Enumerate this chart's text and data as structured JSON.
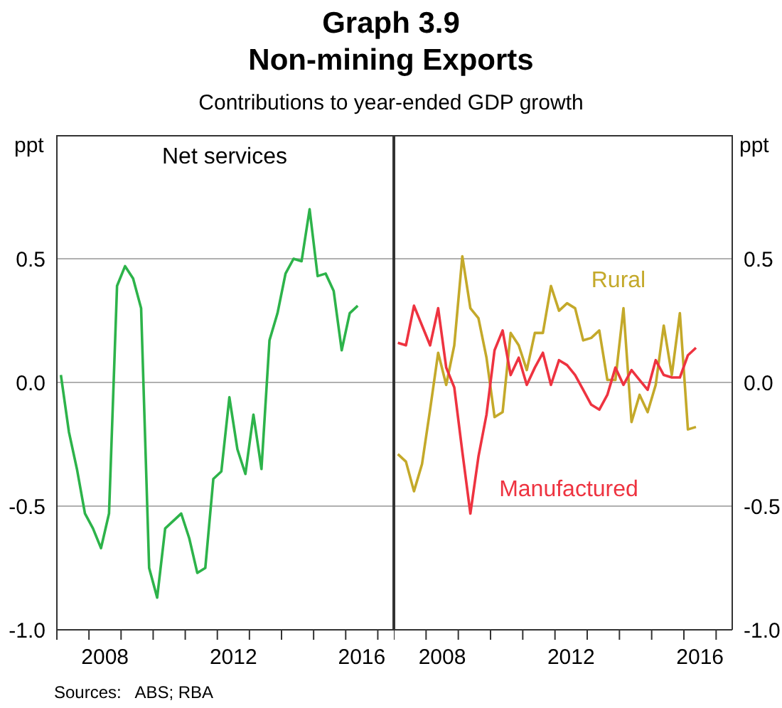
{
  "chart_data": [
    {
      "type": "line",
      "title": "Graph 3.9\nNon-mining Exports",
      "subtitle": "Contributions to year-ended GDP growth",
      "ylabel": "ppt",
      "annotations": [
        "Sources:   ABS; RBA"
      ],
      "grid": "y",
      "marker": "none",
      "tick_labels": "xy",
      "x": [
        2007.125,
        2007.375,
        2007.625,
        2007.875,
        2008.125,
        2008.375,
        2008.625,
        2008.875,
        2009.125,
        2009.375,
        2009.625,
        2009.875,
        2010.125,
        2010.375,
        2010.625,
        2010.875,
        2011.125,
        2011.375,
        2011.625,
        2011.875,
        2012.125,
        2012.375,
        2012.625,
        2012.875,
        2013.125,
        2013.375,
        2013.625,
        2013.875,
        2014.125,
        2014.375,
        2014.625,
        2014.875,
        2015.125,
        2015.375,
        2015.625,
        2015.875,
        2016.125,
        2016.375
      ],
      "xlim": [
        2007,
        2017.5
      ],
      "xticks": [
        {
          "value": 2007,
          "label": null
        },
        {
          "value": 2008,
          "label": null
        },
        {
          "value": 2009,
          "label": null
        },
        {
          "value": 2010,
          "label": null
        },
        {
          "value": 2011,
          "label": null
        },
        {
          "value": 2012,
          "label": null
        },
        {
          "value": 2013,
          "label": null
        },
        {
          "value": 2014,
          "label": null
        },
        {
          "value": 2015,
          "label": null
        },
        {
          "value": 2016,
          "label": null
        },
        {
          "value": 2017,
          "label": null
        },
        {
          "value": 2008.5,
          "label": "2008"
        },
        {
          "value": 2012.5,
          "label": "2012"
        },
        {
          "value": 2016.5,
          "label": "2016"
        }
      ],
      "ylim": [
        -1,
        1
      ],
      "yticks": [
        {
          "value": -1,
          "label": "-1.0"
        },
        -0.5,
        {
          "value": 0,
          "label": "0.0"
        },
        0.5
      ],
      "series": [
        {
          "name": "Net services",
          "color": "#2db34a",
          "values": [
            0.03,
            -0.2,
            -0.35,
            -0.53,
            -0.59,
            -0.67,
            -0.53,
            0.39,
            0.47,
            0.42,
            0.3,
            -0.75,
            -0.87,
            -0.59,
            -0.56,
            -0.53,
            -0.63,
            -0.77,
            -0.75,
            -0.39,
            -0.36,
            -0.06,
            -0.27,
            -0.37,
            -0.13,
            -0.35,
            0.17,
            0.28,
            0.44,
            0.5,
            0.49,
            0.7,
            0.43,
            0.44,
            0.37,
            0.13,
            0.28,
            0.31
          ]
        }
      ]
    },
    {
      "type": "line",
      "y2label": "ppt",
      "grid": "y",
      "marker": "none",
      "tick_labels": "xy",
      "x": [
        2007.125,
        2007.375,
        2007.625,
        2007.875,
        2008.125,
        2008.375,
        2008.625,
        2008.875,
        2009.125,
        2009.375,
        2009.625,
        2009.875,
        2010.125,
        2010.375,
        2010.625,
        2010.875,
        2011.125,
        2011.375,
        2011.625,
        2011.875,
        2012.125,
        2012.375,
        2012.625,
        2012.875,
        2013.125,
        2013.375,
        2013.625,
        2013.875,
        2014.125,
        2014.375,
        2014.625,
        2014.875,
        2015.125,
        2015.375,
        2015.625,
        2015.875,
        2016.125,
        2016.375
      ],
      "xlim": [
        2007,
        2017.5
      ],
      "xticks": [
        {
          "value": 2007,
          "label": null
        },
        {
          "value": 2008,
          "label": null
        },
        {
          "value": 2009,
          "label": null
        },
        {
          "value": 2010,
          "label": null
        },
        {
          "value": 2011,
          "label": null
        },
        {
          "value": 2012,
          "label": null
        },
        {
          "value": 2013,
          "label": null
        },
        {
          "value": 2014,
          "label": null
        },
        {
          "value": 2015,
          "label": null
        },
        {
          "value": 2016,
          "label": null
        },
        {
          "value": 2017,
          "label": null
        },
        {
          "value": 2008.5,
          "label": "2008"
        },
        {
          "value": 2012.5,
          "label": "2012"
        },
        {
          "value": 2016.5,
          "label": "2016"
        }
      ],
      "y2lim": [
        -1,
        1
      ],
      "y2ticks": [
        {
          "value": -1,
          "label": "-1.0"
        },
        -0.5,
        {
          "value": 0,
          "label": "0.0"
        },
        0.5
      ],
      "series": [
        {
          "name": "Rural",
          "color": "#c4a92a",
          "axis": "y2",
          "values": [
            -0.29,
            -0.32,
            -0.44,
            -0.33,
            -0.11,
            0.12,
            -0.01,
            0.15,
            0.51,
            0.3,
            0.26,
            0.1,
            -0.14,
            -0.12,
            0.2,
            0.15,
            0.05,
            0.2,
            0.2,
            0.39,
            0.29,
            0.32,
            0.3,
            0.17,
            0.18,
            0.21,
            0.01,
            0.01,
            0.3,
            -0.16,
            -0.05,
            -0.12,
            -0.01,
            0.23,
            0.03,
            0.28,
            -0.19,
            -0.18
          ]
        },
        {
          "name": "Manufactured",
          "color": "#ee3340",
          "axis": "y2",
          "values": [
            0.16,
            0.15,
            0.31,
            0.23,
            0.15,
            0.3,
            0.06,
            -0.02,
            -0.28,
            -0.53,
            -0.3,
            -0.13,
            0.13,
            0.21,
            0.03,
            0.1,
            -0.01,
            0.06,
            0.12,
            -0.01,
            0.09,
            0.07,
            0.03,
            -0.03,
            -0.09,
            -0.11,
            -0.05,
            0.06,
            -0.01,
            0.05,
            0.01,
            -0.03,
            0.09,
            0.03,
            0.02,
            0.02,
            0.11,
            0.14
          ]
        }
      ]
    }
  ]
}
